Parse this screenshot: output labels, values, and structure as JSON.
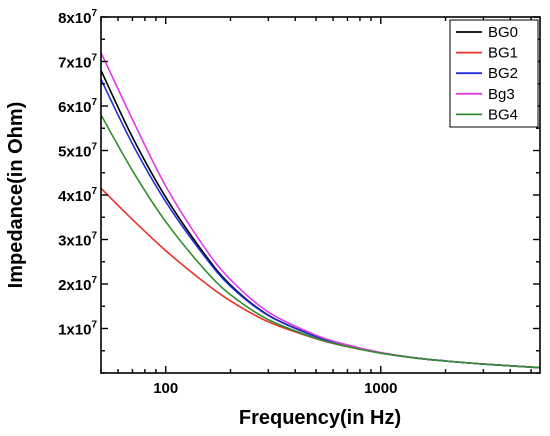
{
  "chart_data": {
    "type": "line",
    "title": "",
    "xlabel": "Frequency(in Hz)",
    "ylabel": "Impedance(in Ohm)",
    "x_scale": "log",
    "xlim": [
      50,
      5500
    ],
    "ylim": [
      0,
      80000000
    ],
    "grid": false,
    "legend_position": "top-right",
    "x_ticks": [
      {
        "value": 100,
        "label": "100"
      },
      {
        "value": 1000,
        "label": "1000"
      }
    ],
    "y_ticks": [
      {
        "value": 10000000,
        "mantissa": "1x10",
        "exponent": "7"
      },
      {
        "value": 20000000,
        "mantissa": "2x10",
        "exponent": "7"
      },
      {
        "value": 30000000,
        "mantissa": "3x10",
        "exponent": "7"
      },
      {
        "value": 40000000,
        "mantissa": "4x10",
        "exponent": "7"
      },
      {
        "value": 50000000,
        "mantissa": "5x10",
        "exponent": "7"
      },
      {
        "value": 60000000,
        "mantissa": "6x10",
        "exponent": "7"
      },
      {
        "value": 70000000,
        "mantissa": "7x10",
        "exponent": "7"
      },
      {
        "value": 80000000,
        "mantissa": "8x10",
        "exponent": "7"
      }
    ],
    "x": [
      50,
      70,
      100,
      150,
      200,
      300,
      500,
      700,
      1000,
      1500,
      2000,
      3000,
      5500
    ],
    "series": [
      {
        "name": "BG0",
        "color": "#000000",
        "values": [
          68000000,
          53000000,
          39500000,
          27000000,
          19800000,
          13000000,
          8200000,
          6100000,
          4500000,
          3300000,
          2700000,
          2000000,
          1200000
        ]
      },
      {
        "name": "BG1",
        "color": "#e8312a",
        "values": [
          41500000,
          34500000,
          27500000,
          20500000,
          16200000,
          11500000,
          7700000,
          5900000,
          4500000,
          3300000,
          2700000,
          2000000,
          1200000
        ]
      },
      {
        "name": "BG2",
        "color": "#1f2fd6",
        "values": [
          66000000,
          51500000,
          38500000,
          26500000,
          19500000,
          12900000,
          8150000,
          6080000,
          4500000,
          3300000,
          2700000,
          2000000,
          1200000
        ]
      },
      {
        "name": "Bg3",
        "color": "#e23be3",
        "values": [
          72000000,
          57000000,
          42000000,
          28500000,
          21000000,
          13700000,
          8500000,
          6300000,
          4600000,
          3300000,
          2700000,
          2000000,
          1200000
        ]
      },
      {
        "name": "BG4",
        "color": "#2e8f2e",
        "values": [
          58000000,
          45500000,
          34000000,
          23500000,
          17600000,
          12000000,
          7800000,
          5950000,
          4450000,
          3280000,
          2700000,
          2000000,
          1200000
        ]
      }
    ]
  }
}
